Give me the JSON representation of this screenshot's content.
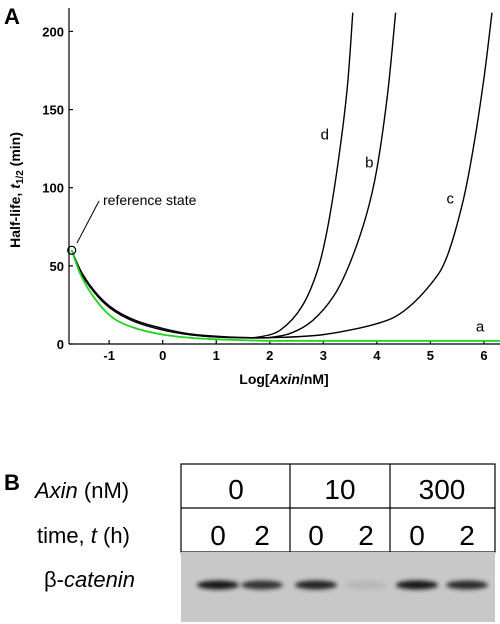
{
  "panel_a": {
    "label": "A",
    "annotation": "reference state"
  },
  "chart_data": {
    "type": "line",
    "xlabel_parts": [
      "Log[",
      "Axin",
      "/nM]"
    ],
    "ylabel_parts": [
      "Half-life, ",
      "t",
      "1/2",
      " (min)"
    ],
    "xlim": [
      -1.75,
      6.3
    ],
    "ylim": [
      0,
      215
    ],
    "x_ticks": [
      -1,
      0,
      1,
      2,
      3,
      4,
      5,
      6
    ],
    "y_ticks": [
      0,
      50,
      100,
      150,
      200
    ],
    "grid": false,
    "reference_point": {
      "x": -1.7,
      "y": 60
    },
    "series": [
      {
        "name": "a",
        "color": "#1fd31f",
        "x": [
          -1.7,
          -1.5,
          -1.2,
          -0.9,
          -0.5,
          0,
          0.5,
          1,
          1.5,
          2,
          3,
          4,
          5,
          6,
          6.3
        ],
        "y": [
          60,
          42,
          26,
          16,
          10,
          6,
          4,
          3,
          2.5,
          2,
          2,
          2,
          2,
          2,
          2
        ]
      },
      {
        "name": "b",
        "color": "#000000",
        "x": [
          -1.7,
          -1.5,
          -1.2,
          -0.9,
          -0.5,
          0,
          0.5,
          1,
          1.5,
          2,
          2.4,
          2.8,
          3.2,
          3.5,
          3.8,
          4.0,
          4.2,
          4.35
        ],
        "y": [
          60,
          44,
          30,
          21,
          14,
          9,
          6,
          4.5,
          4,
          4.2,
          7,
          15,
          31,
          52,
          82,
          112,
          160,
          212
        ]
      },
      {
        "name": "c",
        "color": "#000000",
        "x": [
          -1.7,
          -1.5,
          -1.2,
          -0.9,
          -0.5,
          0,
          0.5,
          1,
          1.5,
          2,
          3,
          4,
          4.5,
          5,
          5.3,
          5.6,
          5.8,
          6.0,
          6.15
        ],
        "y": [
          60,
          44,
          30,
          21,
          14,
          9,
          6,
          4.5,
          4,
          4,
          6,
          13,
          21,
          38,
          55,
          90,
          125,
          170,
          212
        ]
      },
      {
        "name": "d",
        "color": "#000000",
        "x": [
          -1.7,
          -1.5,
          -1.2,
          -0.9,
          -0.5,
          0,
          0.5,
          1,
          1.5,
          1.8,
          2.2,
          2.6,
          2.9,
          3.1,
          3.3,
          3.45,
          3.55
        ],
        "y": [
          60,
          45,
          31,
          22,
          15,
          10,
          6.5,
          5,
          4.2,
          4.5,
          9,
          24,
          48,
          78,
          122,
          165,
          212
        ]
      }
    ],
    "curve_labels": [
      {
        "series": "a",
        "x": 5.85,
        "y": 8
      },
      {
        "series": "b",
        "x": 3.78,
        "y": 113
      },
      {
        "series": "c",
        "x": 5.3,
        "y": 90
      },
      {
        "series": "d",
        "x": 2.95,
        "y": 131
      }
    ]
  },
  "panel_b": {
    "label": "B",
    "axin_label_italic": "Axin",
    "axin_label_unit": " (nM)",
    "time_label_prefix": "time, ",
    "time_label_italic": "t",
    "time_label_unit": " (h)",
    "row_label_beta": "β-",
    "row_label_italic": "catenin",
    "concentrations": [
      "0",
      "10",
      "300"
    ],
    "times": [
      "0",
      "2",
      "0",
      "2",
      "0",
      "2"
    ],
    "band_intensity": [
      1.0,
      0.85,
      0.95,
      0.1,
      1.0,
      0.9
    ]
  }
}
